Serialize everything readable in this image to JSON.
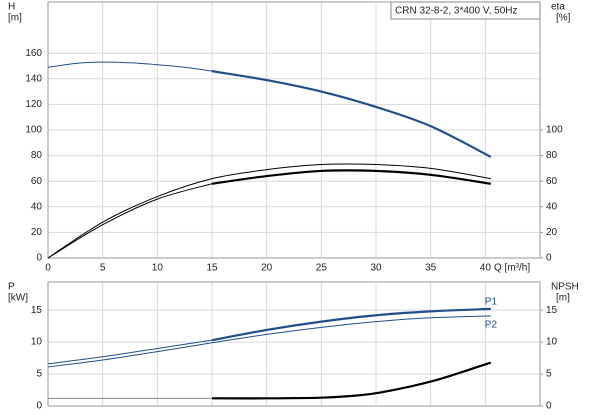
{
  "chart_data": [
    {
      "type": "line",
      "model_label": "CRN 32-8-2, 3*400 V, 50Hz",
      "y_label": "H",
      "y_unit": "[m]",
      "y2_label": "eta",
      "y2_unit": "[%]",
      "x_label": "Q [m³/h]",
      "xlim": [
        0,
        45
      ],
      "xticks": [
        0,
        5,
        10,
        15,
        20,
        25,
        30,
        35,
        40
      ],
      "show_x_tick_labels": true,
      "ylim": [
        0,
        200
      ],
      "yticks": [
        0,
        20,
        40,
        60,
        80,
        100,
        120,
        140,
        160
      ],
      "y2lim": [
        0,
        200
      ],
      "y2ticks": [
        0,
        20,
        40,
        60,
        80,
        100
      ],
      "grid": true,
      "series": [
        {
          "color": "#1f4e8c",
          "line_width": 1,
          "x": [
            0,
            2.5,
            5,
            7.5,
            10,
            12.5,
            15
          ],
          "values": [
            149,
            152,
            153,
            152.5,
            151,
            149,
            146
          ]
        },
        {
          "color": "#1f4e8c",
          "line_width": 2.2,
          "x": [
            15,
            20,
            25,
            30,
            35,
            40.5
          ],
          "values": [
            146,
            139,
            130,
            118,
            103,
            79
          ]
        },
        {
          "color": "#000000",
          "line_width": 1,
          "axis": "y2",
          "x": [
            0,
            5,
            10,
            15,
            20,
            25,
            30,
            35,
            40.5
          ],
          "values": [
            0,
            28,
            48,
            62,
            69,
            73,
            73,
            70,
            62
          ]
        },
        {
          "color": "#000000",
          "line_width": 1,
          "axis": "y2",
          "x": [
            0,
            5,
            10,
            15
          ],
          "values": [
            0,
            26,
            46,
            58
          ]
        },
        {
          "color": "#000000",
          "line_width": 2.2,
          "axis": "y2",
          "x": [
            15,
            20,
            25,
            30,
            35,
            40.5
          ],
          "values": [
            58,
            64,
            68,
            68,
            65,
            58
          ]
        }
      ]
    },
    {
      "type": "line",
      "y_label": "P",
      "y_unit": "[kW]",
      "y2_label": "NPSH",
      "y2_unit": "[m]",
      "xlim": [
        0,
        45
      ],
      "xticks": [
        0,
        5,
        10,
        15,
        20,
        25,
        30,
        35,
        40
      ],
      "show_x_tick_labels": false,
      "ylim": [
        0,
        19.4
      ],
      "yticks": [
        0,
        5,
        10,
        15
      ],
      "y2lim": [
        0,
        19.4
      ],
      "y2ticks": [
        0,
        5,
        10,
        15
      ],
      "grid": true,
      "series": [
        {
          "color": "#1f4e8c",
          "line_width": 1,
          "x": [
            0,
            5,
            10,
            15
          ],
          "values": [
            6.6,
            7.7,
            9,
            10.3
          ]
        },
        {
          "name": "P1",
          "color": "#1f4e8c",
          "line_width": 2.2,
          "x": [
            15,
            20,
            25,
            30,
            35,
            40.5
          ],
          "values": [
            10.3,
            11.9,
            13.2,
            14.2,
            14.8,
            15.2
          ]
        },
        {
          "name": "P2",
          "color": "#1f4e8c",
          "line_width": 1,
          "x": [
            0,
            5,
            10,
            15,
            20,
            25,
            30,
            35,
            40.5
          ],
          "values": [
            6.1,
            7.2,
            8.5,
            9.9,
            11.2,
            12.3,
            13.2,
            13.8,
            14.1
          ]
        },
        {
          "color": "#888888",
          "line_width": 1,
          "axis": "y2",
          "x": [
            0,
            15
          ],
          "values": [
            1.2,
            1.2
          ]
        },
        {
          "color": "#000000",
          "line_width": 2.2,
          "axis": "y2",
          "x": [
            15,
            20,
            25,
            28,
            30,
            33,
            36,
            40.5
          ],
          "values": [
            1.2,
            1.2,
            1.3,
            1.6,
            2,
            3,
            4.3,
            6.8
          ]
        }
      ]
    }
  ]
}
